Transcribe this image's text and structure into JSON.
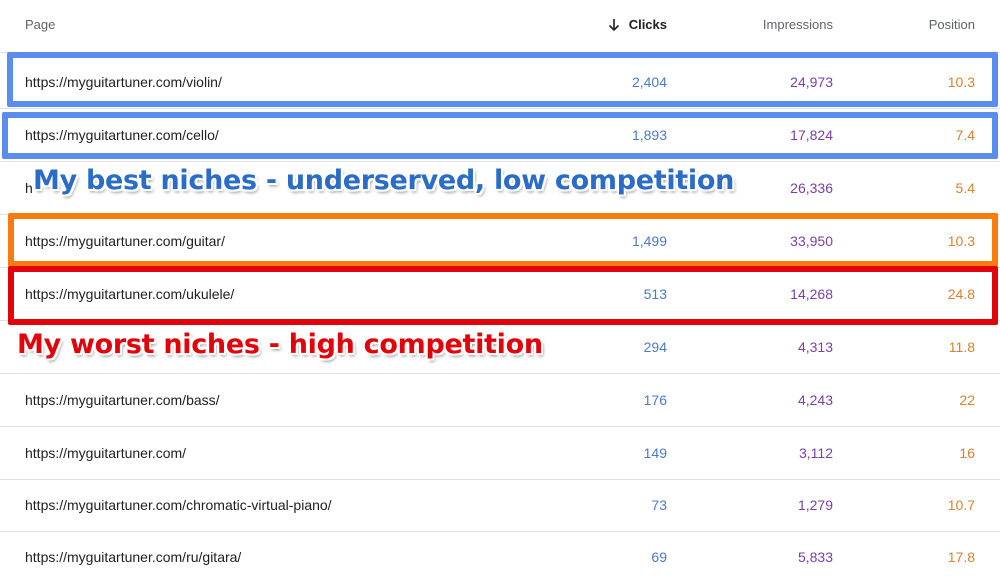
{
  "columns": {
    "page": "Page",
    "clicks": "Clicks",
    "impressions": "Impressions",
    "position": "Position",
    "sort_icon": "arrow-down-icon"
  },
  "rows": [
    {
      "page": "https://myguitartuner.com/violin/",
      "clicks": "2,404",
      "impressions": "24,973",
      "position": "10.3"
    },
    {
      "page": "https://myguitartuner.com/cello/",
      "clicks": "1,893",
      "impressions": "17,824",
      "position": "7.4"
    },
    {
      "page": "h",
      "clicks": "",
      "impressions": "26,336",
      "position": "5.4"
    },
    {
      "page": "https://myguitartuner.com/guitar/",
      "clicks": "1,499",
      "impressions": "33,950",
      "position": "10.3"
    },
    {
      "page": "https://myguitartuner.com/ukulele/",
      "clicks": "513",
      "impressions": "14,268",
      "position": "24.8"
    },
    {
      "page": "",
      "clicks": "294",
      "impressions": "4,313",
      "position": "11.8"
    },
    {
      "page": "https://myguitartuner.com/bass/",
      "clicks": "176",
      "impressions": "4,243",
      "position": "22"
    },
    {
      "page": "https://myguitartuner.com/",
      "clicks": "149",
      "impressions": "3,112",
      "position": "16"
    },
    {
      "page": "https://myguitartuner.com/chromatic-virtual-piano/",
      "clicks": "73",
      "impressions": "1,279",
      "position": "10.7"
    },
    {
      "page": "https://myguitartuner.com/ru/gitara/",
      "clicks": "69",
      "impressions": "5,833",
      "position": "17.8"
    }
  ],
  "annotations": {
    "best": "My best niches - underserved, low competition",
    "worst": "My worst niches - high competition"
  },
  "colors": {
    "clicks": "#4a7ac9",
    "impressions": "#7b3fa8",
    "position": "#d8822c",
    "highlight_best": "#5b8def",
    "highlight_mid": "#f77b0f",
    "highlight_worst": "#e1040a"
  }
}
